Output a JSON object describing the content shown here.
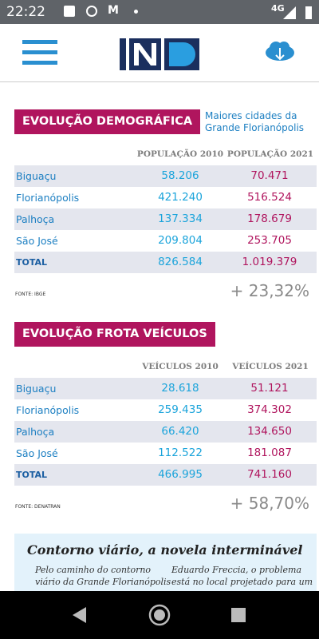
{
  "status_bar": {
    "time": "22:22",
    "network": "4G"
  },
  "sections": [
    {
      "title": "EVOLUÇÃO DEMOGRÁFICA",
      "subtitle": [
        "Maiores cidades da",
        "Grande Florianópolis"
      ],
      "columns": [
        "POPULAÇÃO 2010",
        "POPULAÇÃO 2021"
      ],
      "rows": [
        [
          "Biguaçu",
          "58.206",
          "70.471"
        ],
        [
          "Florianópolis",
          "421.240",
          "516.524"
        ],
        [
          "Palhoça",
          "137.334",
          "178.679"
        ],
        [
          "São José",
          "209.804",
          "253.705"
        ],
        [
          "TOTAL",
          "826.584",
          "1.019.379"
        ]
      ],
      "source": "FONTE: IBGE",
      "growth": "+ 23,32%"
    },
    {
      "title": "EVOLUÇÃO FROTA VEÍCULOS",
      "columns": [
        "VEÍCULOS 2010",
        "VEÍCULOS 2021"
      ],
      "rows": [
        [
          "Biguaçu",
          "28.618",
          "51.121"
        ],
        [
          "Florianópolis",
          "259.435",
          "374.302"
        ],
        [
          "Palhoça",
          "66.420",
          "134.650"
        ],
        [
          "São José",
          "112.522",
          "181.087"
        ],
        [
          "TOTAL",
          "466.995",
          "741.160"
        ]
      ],
      "source": "FONTE: DENATRAN",
      "growth": "+ 58,70%"
    }
  ],
  "article": {
    "title": "Contorno viário, a novela interminável",
    "columns": [
      [
        "Pelo caminho do contorno",
        "viário da Grande Florianópolis"
      ],
      [
        "Eduardo Freccia, o problema",
        "está no local projetado para um"
      ]
    ]
  }
}
